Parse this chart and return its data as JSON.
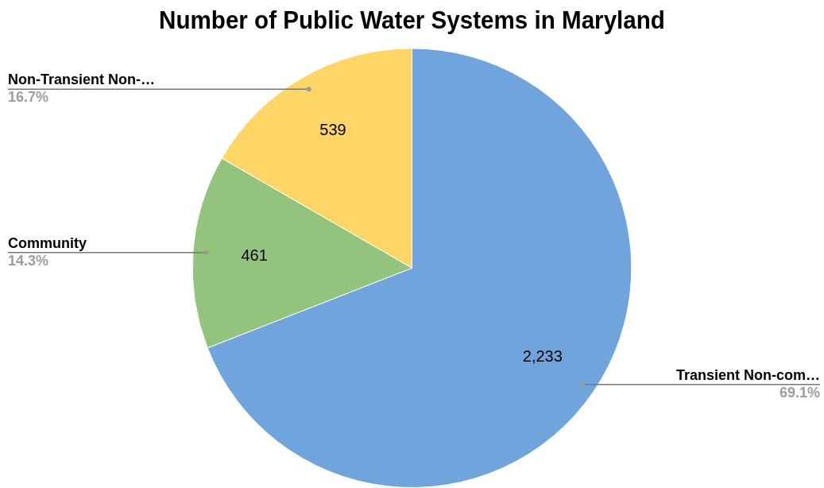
{
  "chart_data": {
    "type": "pie",
    "title": "Number of Public Water Systems in Maryland",
    "categories": [
      "Transient Non-com…",
      "Community",
      "Non-Transient Non-…"
    ],
    "values": [
      2233,
      461,
      539
    ],
    "colors": [
      "#6fa5dc",
      "#93c47d",
      "#ffd666"
    ],
    "value_labels": [
      "2,233",
      "461",
      "539"
    ],
    "legend": false,
    "annotations": [
      {
        "text": "69.1%",
        "x": "Transient Non-com…"
      },
      {
        "text": "14.3%",
        "x": "Community"
      },
      {
        "text": "16.7%",
        "x": "Non-Transient Non-…"
      }
    ]
  }
}
